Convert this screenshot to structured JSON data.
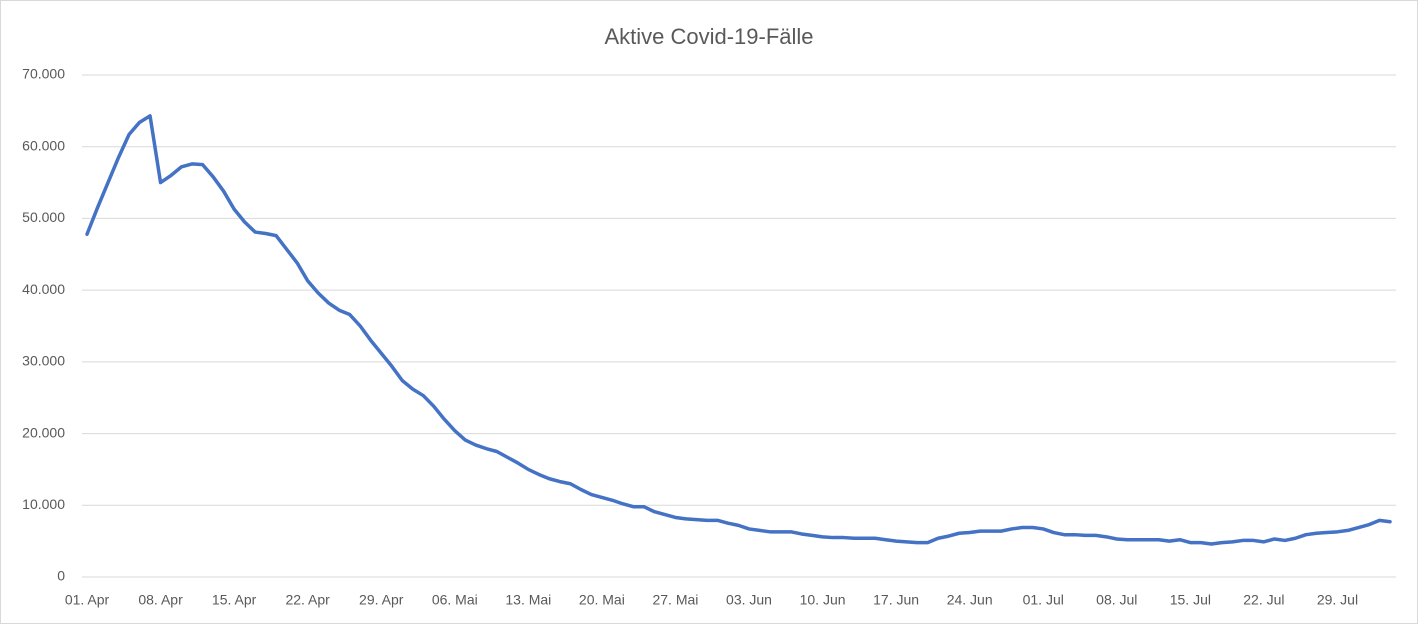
{
  "chart_data": {
    "type": "line",
    "title": "Aktive Covid-19-Fälle",
    "categories": [
      "01. Apr",
      null,
      null,
      null,
      null,
      null,
      null,
      "08. Apr",
      null,
      null,
      null,
      null,
      null,
      null,
      "15. Apr",
      null,
      null,
      null,
      null,
      null,
      null,
      "22. Apr",
      null,
      null,
      null,
      null,
      null,
      null,
      "29. Apr",
      null,
      null,
      null,
      null,
      null,
      null,
      "06. Mai",
      null,
      null,
      null,
      null,
      null,
      null,
      "13. Mai",
      null,
      null,
      null,
      null,
      null,
      null,
      "20. Mai",
      null,
      null,
      null,
      null,
      null,
      null,
      "27. Mai",
      null,
      null,
      null,
      null,
      null,
      null,
      "03. Jun",
      null,
      null,
      null,
      null,
      null,
      null,
      "10. Jun",
      null,
      null,
      null,
      null,
      null,
      null,
      "17. Jun",
      null,
      null,
      null,
      null,
      null,
      null,
      "24. Jun",
      null,
      null,
      null,
      null,
      null,
      null,
      "01. Jul",
      null,
      null,
      null,
      null,
      null,
      null,
      "08. Jul",
      null,
      null,
      null,
      null,
      null,
      null,
      "15. Jul",
      null,
      null,
      null,
      null,
      null,
      null,
      "22. Jul",
      null,
      null,
      null,
      null,
      null,
      null,
      "29. Jul",
      null,
      null,
      null,
      null,
      null
    ],
    "values": [
      47800,
      51500,
      55000,
      58500,
      61700,
      63400,
      64300,
      55000,
      56000,
      57200,
      57600,
      57500,
      55800,
      53800,
      51300,
      49500,
      48100,
      47900,
      47600,
      45700,
      43800,
      41300,
      39600,
      38200,
      37200,
      36600,
      35000,
      33000,
      31200,
      29400,
      27400,
      26200,
      25300,
      23800,
      22000,
      20400,
      19100,
      18400,
      17900,
      17500,
      16700,
      15900,
      15000,
      14300,
      13700,
      13300,
      13000,
      12200,
      11500,
      11100,
      10700,
      10200,
      9800,
      9800,
      9100,
      8700,
      8300,
      8100,
      8000,
      7900,
      7900,
      7500,
      7200,
      6700,
      6500,
      6300,
      6300,
      6300,
      6000,
      5800,
      5600,
      5500,
      5500,
      5400,
      5400,
      5400,
      5200,
      5000,
      4900,
      4800,
      4800,
      5400,
      5700,
      6100,
      6200,
      6400,
      6400,
      6400,
      6700,
      6900,
      6900,
      6700,
      6200,
      5900,
      5900,
      5800,
      5800,
      5600,
      5300,
      5200,
      5200,
      5200,
      5200,
      5000,
      5200,
      4800,
      4800,
      4600,
      4800,
      4900,
      5100,
      5100,
      4900,
      5300,
      5100,
      5400,
      5900,
      6100,
      6200,
      6300,
      6500,
      6900,
      7300,
      7900,
      7700
    ],
    "color": "#4472c4",
    "ylim": [
      0,
      70000
    ],
    "yticks": [
      0,
      {
        "value": 10000,
        "label": "10.000"
      },
      {
        "value": 20000,
        "label": "20.000"
      },
      {
        "value": 30000,
        "label": "30.000"
      },
      {
        "value": 40000,
        "label": "40.000"
      },
      {
        "value": 50000,
        "label": "50.000"
      },
      {
        "value": 60000,
        "label": "60.000"
      },
      {
        "value": 70000,
        "label": "70.000"
      }
    ],
    "grid": true
  }
}
